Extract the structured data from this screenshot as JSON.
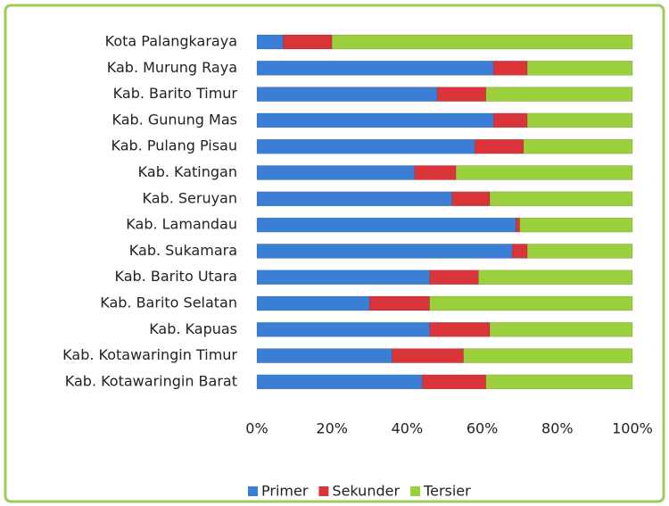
{
  "chart_data": {
    "type": "stacked_barh",
    "categories": [
      "Kota Palangkaraya",
      "Kab. Murung Raya",
      "Kab. Barito Timur",
      "Kab. Gunung Mas",
      "Kab. Pulang Pisau",
      "Kab. Katingan",
      "Kab. Seruyan",
      "Kab. Lamandau",
      "Kab. Sukamara",
      "Kab. Barito Utara",
      "Kab. Barito Selatan",
      "Kab. Kapuas",
      "Kab. Kotawaringin Timur",
      "Kab. Kotawaringin Barat"
    ],
    "series": [
      {
        "name": "Primer",
        "color": "#3a7fd5",
        "values": [
          7,
          63,
          48,
          63,
          58,
          42,
          52,
          69,
          68,
          46,
          30,
          46,
          36,
          44
        ]
      },
      {
        "name": "Sekunder",
        "color": "#d9343a",
        "values": [
          13,
          9,
          13,
          9,
          13,
          11,
          10,
          1,
          4,
          13,
          16,
          16,
          19,
          17
        ]
      },
      {
        "name": "Tersier",
        "color": "#9bcf3e",
        "values": [
          80,
          28,
          39,
          28,
          29,
          47,
          38,
          30,
          28,
          41,
          54,
          38,
          45,
          39
        ]
      }
    ],
    "xlim": [
      0,
      100
    ],
    "xticks": [
      {
        "value": 0,
        "label": "0%"
      },
      {
        "value": 20,
        "label": "20%"
      },
      {
        "value": 40,
        "label": "40%"
      },
      {
        "value": 60,
        "label": "60%"
      },
      {
        "value": 80,
        "label": "80%"
      },
      {
        "value": 100,
        "label": "100%"
      }
    ],
    "grid": false,
    "legend": "bottom"
  }
}
